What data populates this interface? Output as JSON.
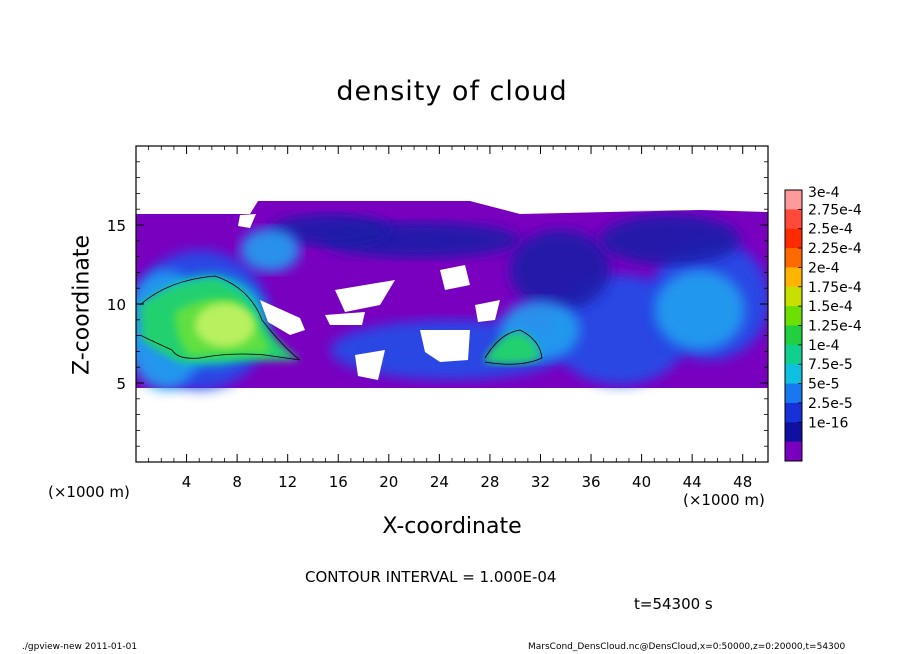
{
  "chart_data": {
    "type": "heatmap",
    "title": "density of cloud",
    "xlabel": "X-coordinate",
    "ylabel": "Z-coordinate",
    "x_unit_label": "(×1000 m)",
    "z_unit_label": "(×1000 m)",
    "xlim": [
      0,
      50
    ],
    "ylim": [
      0,
      20
    ],
    "x_ticks": [
      4,
      8,
      12,
      16,
      20,
      24,
      28,
      32,
      36,
      40,
      44,
      48
    ],
    "y_ticks": [
      5,
      10,
      15
    ],
    "colorbar": {
      "labels": [
        "3e-4",
        "2.75e-4",
        "2.5e-4",
        "2.25e-4",
        "2e-4",
        "1.75e-4",
        "1.5e-4",
        "1.25e-4",
        "1e-4",
        "7.5e-5",
        "5e-5",
        "2.5e-5",
        "1e-16"
      ],
      "colors": [
        "#ff9a9a",
        "#ff4a3a",
        "#ff2a00",
        "#ff6a00",
        "#ffb400",
        "#c8e000",
        "#6ce000",
        "#20d040",
        "#10d090",
        "#10c0e0",
        "#1878f0",
        "#1830d8",
        "#1010a0",
        "#7a00c0"
      ]
    },
    "annotations": {
      "contour_interval": "CONTOUR INTERVAL = 1.000E-04",
      "time": "t=54300 s"
    }
  },
  "footer": {
    "left": "./gpview-new   2011-01-01",
    "right": "MarsCond_DensCloud.nc@DensCloud,x=0:50000,z=0:20000,t=54300"
  }
}
